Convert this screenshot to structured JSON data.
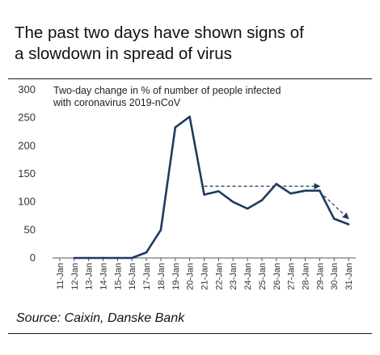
{
  "heading": {
    "line1": "The past two days have shown signs of",
    "line2": "a slowdown in spread of virus"
  },
  "source": "Source: Caixin, Danske Bank",
  "chart_data": {
    "type": "line",
    "title": "",
    "annotation": [
      "Two-day change in % of number of people infected",
      "with coronavirus 2019-nCoV"
    ],
    "x": [
      "11-Jan",
      "12-Jan",
      "13-Jan",
      "14-Jan",
      "15-Jan",
      "16-Jan",
      "17-Jan",
      "18-Jan",
      "19-Jan",
      "20-Jan",
      "21-Jan",
      "22-Jan",
      "23-Jan",
      "24-Jan",
      "25-Jan",
      "26-Jan",
      "27-Jan",
      "28-Jan",
      "29-Jan",
      "30-Jan",
      "31-Jan"
    ],
    "values": [
      null,
      0,
      0,
      0,
      0,
      0,
      10,
      50,
      233,
      252,
      113,
      119,
      100,
      88,
      103,
      132,
      115,
      120,
      120,
      70,
      60
    ],
    "yticks": [
      0,
      50,
      100,
      150,
      200,
      250,
      300
    ],
    "ylim": [
      0,
      300
    ],
    "grid": false,
    "line_color": "#1f3a5f",
    "trend_arrows": [
      {
        "from": [
          "21-Jan",
          128
        ],
        "to": [
          "29-Jan",
          128
        ]
      },
      {
        "from": [
          "29-Jan",
          118
        ],
        "to": [
          "31-Jan",
          70
        ]
      }
    ]
  }
}
